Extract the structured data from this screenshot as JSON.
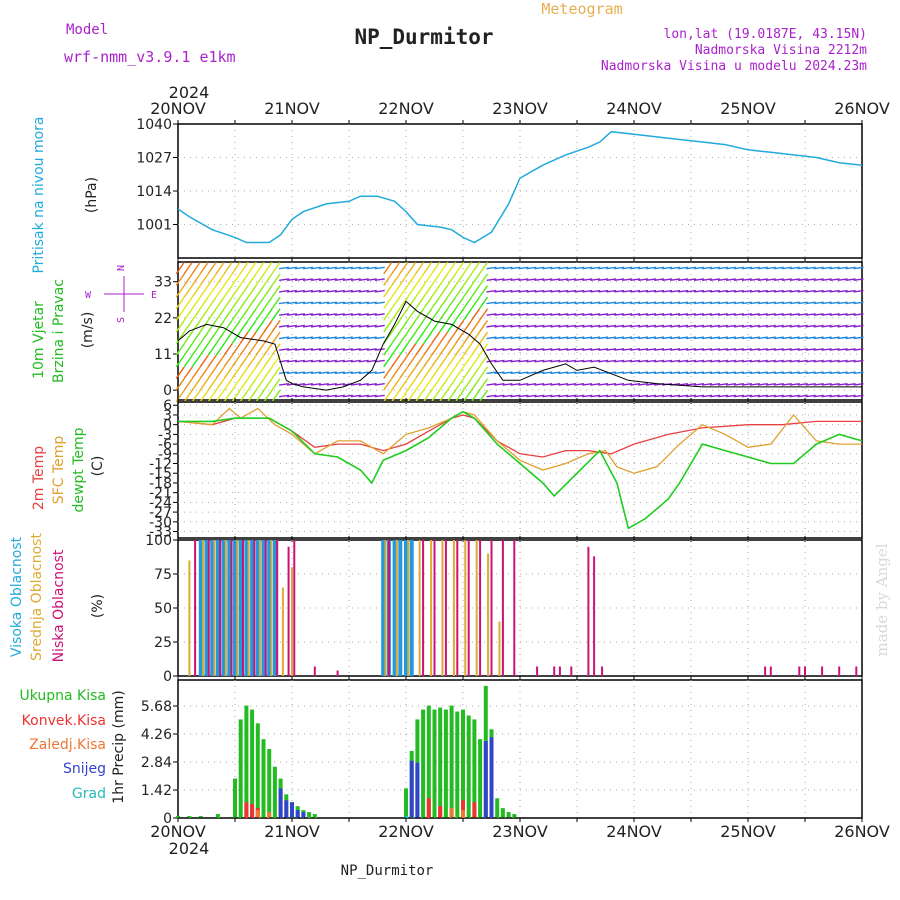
{
  "header": {
    "model_label": "Model",
    "model_name": "wrf-nmm_v3.9.1 e1km",
    "title": "NP_Durmitor",
    "meteogram": "Meteogram",
    "lonlat": "lon,lat (19.0187E, 43.15N)",
    "elevation": "Nadmorska Visina 2212m",
    "elevation_model": "Nadmorska Visina u modelu 2024.23m",
    "year": "2024"
  },
  "footer": {
    "station": "NP_Durmitor",
    "year": "2024",
    "credit": "made by Angel"
  },
  "colors": {
    "pressure": "#22aadd",
    "temp2m": "#e84040",
    "sfc": "#e0a030",
    "dewpt": "#20cc20",
    "high_cloud": "#2299dd",
    "mid_cloud": "#ddaa33",
    "low_cloud": "#cc1177",
    "total_precip": "#22bb22",
    "convective": "#ee3333",
    "freezing": "#ee7733",
    "snow": "#3344cc",
    "hail": "#22bbbb",
    "wind_barb_strong": "#cc2222",
    "wind_barb_weak": "#8822cc",
    "ylabel_purple": "#aa22cc"
  },
  "x_ticks": [
    "20NOV",
    "21NOV",
    "22NOV",
    "23NOV",
    "24NOV",
    "25NOV",
    "26NOV"
  ],
  "compass": {
    "n": "N",
    "w": "W",
    "e": "E",
    "s": "S"
  },
  "chart_data": [
    {
      "type": "line",
      "panel": "pressure",
      "ylabel_1": "Pritisak na nivou mora",
      "ylabel_2": "(hPa)",
      "yticks": [
        "1040",
        "1027",
        "1014",
        "1001"
      ],
      "ylim": [
        988,
        1040
      ],
      "grid": true,
      "series": [
        {
          "x": [
            0,
            0.1,
            0.3,
            0.5,
            0.6,
            0.8,
            0.9,
            1.0,
            1.1,
            1.3,
            1.5,
            1.6,
            1.75,
            1.9,
            2.0,
            2.1,
            2.3,
            2.4,
            2.5,
            2.6,
            2.75,
            2.9,
            3.0,
            3.2,
            3.4,
            3.6,
            3.7,
            3.8,
            4.0,
            4.2,
            4.4,
            4.6,
            4.8,
            5.0,
            5.2,
            5.4,
            5.6,
            5.8,
            6.0
          ],
          "values": [
            1007,
            1004,
            999,
            996,
            994,
            994,
            997,
            1003,
            1006,
            1009,
            1010,
            1012,
            1012,
            1010,
            1006,
            1001,
            1000,
            999,
            996,
            994,
            998,
            1009,
            1019,
            1024,
            1028,
            1031,
            1033,
            1037,
            1036,
            1035,
            1034,
            1033,
            1032,
            1030,
            1029,
            1028,
            1027,
            1025,
            1024
          ]
        }
      ]
    },
    {
      "type": "line",
      "panel": "wind",
      "ylabel_1": "10m Vjetar",
      "ylabel_2": "Brzina i Pravac",
      "ylabel_3": "(m/s)",
      "yticks": [
        "33",
        "22",
        "11",
        "0"
      ],
      "ylim": [
        -3,
        39
      ],
      "grid": true,
      "series": [
        {
          "name": "speed",
          "x": [
            0,
            0.1,
            0.25,
            0.4,
            0.55,
            0.75,
            0.85,
            0.95,
            1.0,
            1.1,
            1.3,
            1.45,
            1.6,
            1.7,
            1.8,
            1.9,
            2.0,
            2.1,
            2.25,
            2.4,
            2.55,
            2.65,
            2.75,
            2.85,
            3.0,
            3.2,
            3.4,
            3.5,
            3.65,
            3.8,
            3.95,
            4.2,
            4.6,
            5.0,
            5.4,
            5.8,
            6.0
          ],
          "values": [
            15,
            18,
            20,
            19,
            16,
            15,
            14,
            3,
            2,
            1,
            0,
            1,
            3,
            6,
            14,
            20,
            27,
            24,
            21,
            20,
            17,
            14,
            8,
            3,
            3,
            6,
            8,
            6,
            7,
            5,
            3,
            2,
            1,
            1,
            1,
            1,
            1
          ]
        }
      ]
    },
    {
      "type": "line",
      "panel": "temperature",
      "ylabel_1": "2m Temp",
      "ylabel_2": "SFC Temp",
      "ylabel_3": "dewpt Temp",
      "ylabel_4": "(C)",
      "yticks": [
        "6",
        "3",
        "0",
        "-3",
        "-6",
        "-9",
        "-12",
        "-15",
        "-18",
        "-21",
        "-24",
        "-27",
        "-30",
        "-33"
      ],
      "ylim": [
        -35,
        7
      ],
      "grid": true,
      "series": [
        {
          "name": "2m Temp",
          "x": [
            0,
            0.3,
            0.5,
            0.8,
            1.0,
            1.2,
            1.4,
            1.6,
            1.8,
            2.0,
            2.2,
            2.4,
            2.5,
            2.6,
            2.8,
            3.0,
            3.2,
            3.4,
            3.6,
            3.8,
            4.0,
            4.3,
            4.6,
            5.0,
            5.3,
            5.6,
            6.0
          ],
          "values": [
            1,
            0,
            2,
            2,
            -2,
            -7,
            -6,
            -6,
            -8,
            -6,
            -2,
            2,
            3,
            2,
            -5,
            -9,
            -10,
            -8,
            -8,
            -9,
            -6,
            -3,
            -1,
            0,
            0,
            1,
            1
          ]
        },
        {
          "name": "SFC Temp",
          "x": [
            0,
            0.3,
            0.45,
            0.55,
            0.7,
            0.85,
            1.0,
            1.2,
            1.4,
            1.6,
            1.8,
            2.0,
            2.2,
            2.4,
            2.5,
            2.6,
            2.8,
            3.0,
            3.2,
            3.4,
            3.6,
            3.75,
            3.85,
            4.0,
            4.2,
            4.4,
            4.6,
            4.8,
            5.0,
            5.2,
            5.4,
            5.6,
            5.8,
            6.0
          ],
          "values": [
            1,
            0,
            5,
            2,
            5,
            0,
            -3,
            -9,
            -5,
            -5,
            -9,
            -3,
            -1,
            2,
            4,
            3,
            -5,
            -11,
            -14,
            -12,
            -9,
            -8,
            -13,
            -15,
            -13,
            -6,
            0,
            -3,
            -7,
            -6,
            3,
            -5,
            -6,
            -6
          ]
        },
        {
          "name": "dewpt Temp",
          "x": [
            0,
            0.3,
            0.5,
            0.8,
            1.0,
            1.2,
            1.4,
            1.6,
            1.7,
            1.8,
            2.0,
            2.2,
            2.4,
            2.5,
            2.6,
            2.8,
            3.0,
            3.2,
            3.3,
            3.5,
            3.7,
            3.85,
            3.95,
            4.1,
            4.3,
            4.4,
            4.6,
            4.8,
            5.0,
            5.2,
            5.4,
            5.6,
            5.8,
            6.0
          ],
          "values": [
            1,
            1,
            2,
            2,
            -2,
            -9,
            -10,
            -14,
            -18,
            -11,
            -8,
            -4,
            2,
            4,
            2,
            -6,
            -12,
            -18,
            -22,
            -15,
            -8,
            -18,
            -32,
            -29,
            -23,
            -18,
            -6,
            -8,
            -10,
            -12,
            -12,
            -6,
            -3,
            -5
          ]
        }
      ]
    },
    {
      "type": "bar",
      "panel": "clouds",
      "ylabel_1": "Visoka Oblacnost",
      "ylabel_2": "Srednja Oblacnost",
      "ylabel_3": "Niska Oblacnost",
      "ylabel_4": "(%)",
      "yticks": [
        "100",
        "75",
        "50",
        "25",
        "0"
      ],
      "ylim": [
        0,
        100
      ],
      "grid": true,
      "series": [
        {
          "name": "Visoka Oblacnost",
          "x": [
            0.2,
            0.25,
            0.3,
            0.35,
            0.4,
            0.45,
            0.5,
            0.55,
            0.6,
            0.65,
            0.7,
            0.75,
            0.8,
            0.85,
            1.8,
            1.85,
            1.9,
            1.95,
            2.0,
            2.05
          ],
          "values": [
            100,
            100,
            100,
            100,
            100,
            100,
            100,
            100,
            100,
            100,
            100,
            100,
            100,
            100,
            100,
            100,
            100,
            100,
            100,
            100
          ]
        },
        {
          "name": "Srednja Oblacnost",
          "x": [
            0.1,
            0.22,
            0.32,
            0.42,
            0.52,
            0.62,
            0.72,
            0.82,
            0.92,
            1.0,
            1.82,
            1.92,
            2.02,
            2.12,
            2.22,
            2.32,
            2.42,
            2.52,
            2.62,
            2.72,
            2.82
          ],
          "values": [
            85,
            100,
            100,
            100,
            100,
            100,
            100,
            100,
            65,
            80,
            100,
            100,
            100,
            100,
            100,
            100,
            100,
            100,
            100,
            90,
            40
          ]
        },
        {
          "name": "Niska Oblacnost",
          "x": [
            0.15,
            0.27,
            0.37,
            0.47,
            0.57,
            0.67,
            0.77,
            0.87,
            0.97,
            1.02,
            1.2,
            1.4,
            1.85,
            2.15,
            2.25,
            2.35,
            2.45,
            2.55,
            2.65,
            2.75,
            2.85,
            2.95,
            3.15,
            3.3,
            3.35,
            3.45,
            3.6,
            3.65,
            3.72,
            5.15,
            5.2,
            5.45,
            5.5,
            5.65,
            5.8,
            5.95
          ],
          "values": [
            100,
            100,
            100,
            100,
            100,
            100,
            100,
            100,
            95,
            100,
            7,
            4,
            100,
            100,
            100,
            100,
            100,
            100,
            100,
            100,
            100,
            100,
            7,
            7,
            7,
            7,
            95,
            88,
            7,
            7,
            7,
            7,
            7,
            7,
            7,
            7
          ]
        }
      ]
    },
    {
      "type": "bar",
      "panel": "precipitation",
      "ylabel_1": "1hr Precip (mm)",
      "legend": [
        "Ukupna Kisa",
        "Konvek.Kisa",
        "Zaledj.Kisa",
        "Snijeg",
        "Grad"
      ],
      "yticks": [
        "5.68",
        "4.26",
        "2.84",
        "1.42",
        "0"
      ],
      "ylim": [
        0,
        7
      ],
      "grid": true,
      "series": [
        {
          "name": "Ukupna Kisa",
          "x": [
            0.0,
            0.1,
            0.2,
            0.35,
            0.5,
            0.55,
            0.6,
            0.65,
            0.7,
            0.75,
            0.8,
            0.85,
            0.9,
            0.95,
            1.0,
            1.05,
            1.1,
            1.15,
            1.2,
            2.0,
            2.05,
            2.1,
            2.15,
            2.2,
            2.25,
            2.3,
            2.35,
            2.4,
            2.45,
            2.5,
            2.55,
            2.6,
            2.65,
            2.7,
            2.75,
            2.8,
            2.85,
            2.9,
            2.95
          ],
          "values": [
            0.1,
            0.1,
            0.1,
            0.2,
            2.0,
            5.0,
            5.7,
            5.5,
            4.8,
            4.0,
            3.5,
            2.6,
            2.0,
            1.2,
            0.8,
            0.6,
            0.4,
            0.3,
            0.2,
            1.5,
            3.4,
            5.0,
            5.5,
            5.7,
            5.5,
            5.6,
            5.5,
            5.7,
            5.4,
            5.5,
            5.2,
            5.0,
            4.0,
            6.7,
            4.5,
            1.0,
            0.5,
            0.3,
            0.2
          ]
        },
        {
          "name": "Konvek.Kisa",
          "x": [
            0.6,
            0.65,
            0.7,
            2.2,
            2.3,
            2.5,
            2.6
          ],
          "values": [
            0.8,
            0.7,
            0.5,
            1.0,
            0.6,
            0.9,
            0.8
          ]
        },
        {
          "name": "Zaledj.Kisa",
          "x": [
            0.7,
            0.8,
            2.4,
            2.5
          ],
          "values": [
            0.4,
            0.3,
            0.5,
            0.4
          ]
        },
        {
          "name": "Snijeg",
          "x": [
            0.9,
            0.95,
            1.0,
            1.05,
            1.1,
            2.05,
            2.1,
            2.7,
            2.75
          ],
          "values": [
            1.5,
            0.9,
            0.8,
            0.4,
            0.3,
            2.9,
            2.8,
            3.9,
            4.1
          ]
        },
        {
          "name": "Grad",
          "x": [
            1.0,
            2.0,
            2.05
          ],
          "values": [
            0.05,
            0.1,
            0.05
          ]
        }
      ]
    }
  ]
}
